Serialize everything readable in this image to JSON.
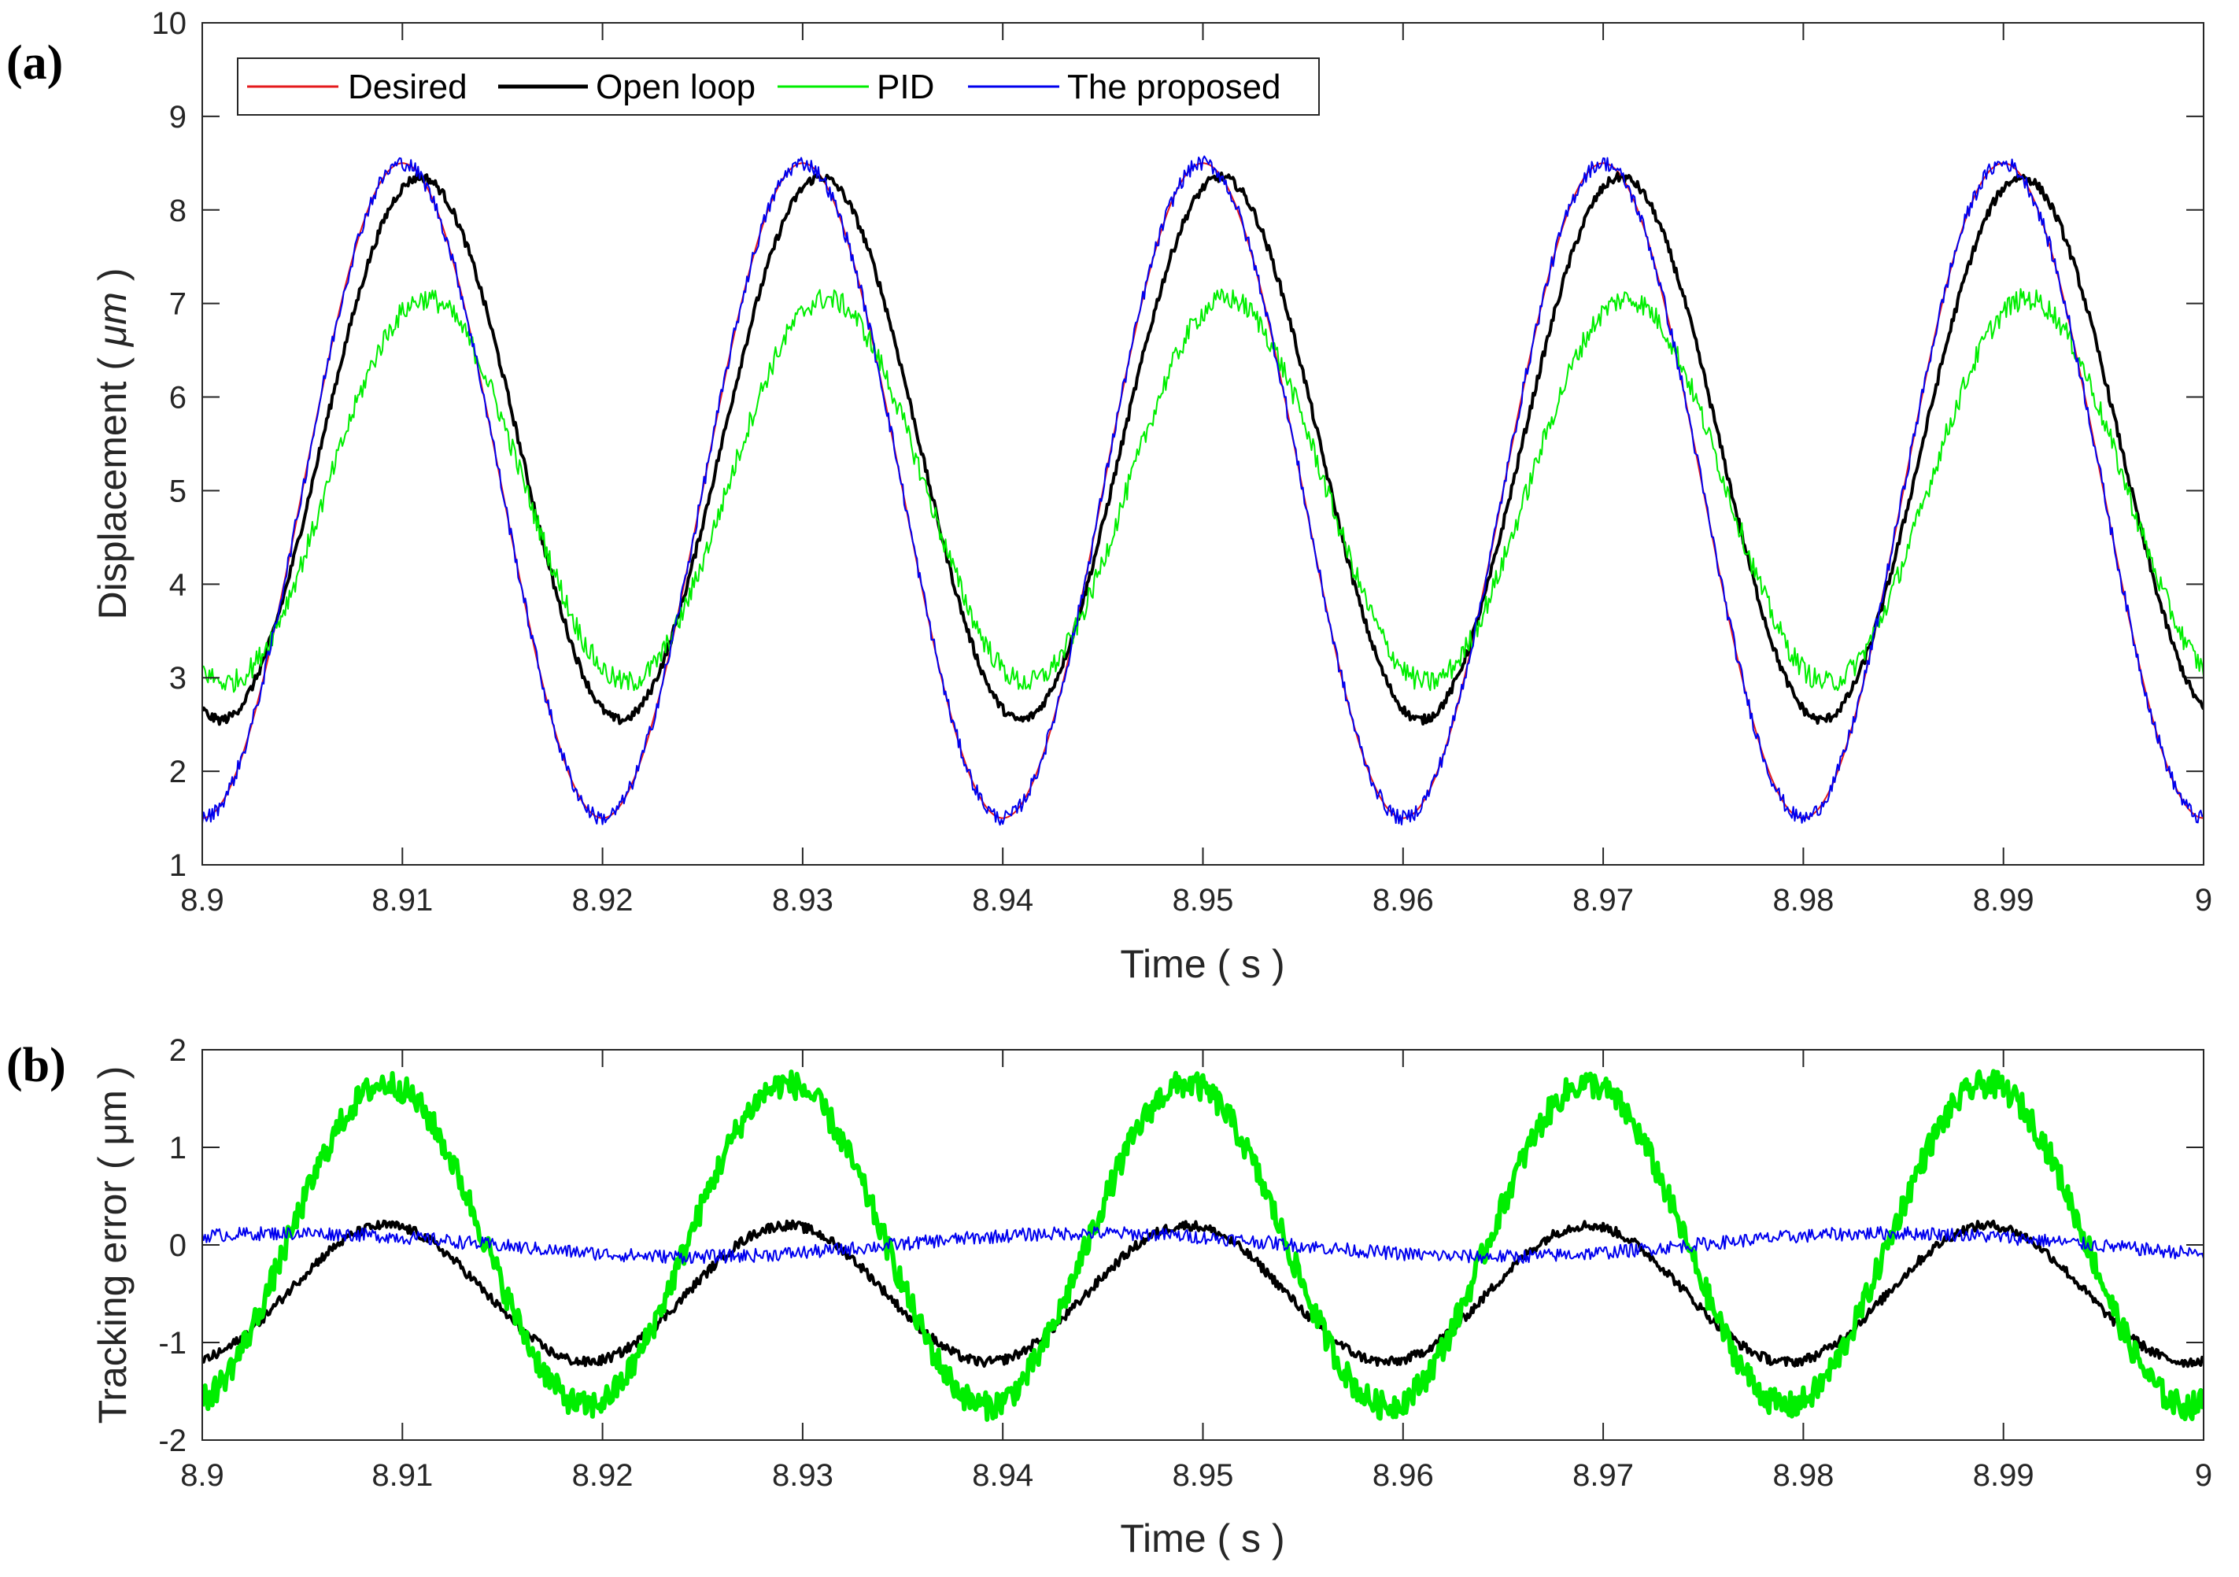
{
  "colors": {
    "desired": "#e41a1c",
    "open_loop": "#000000",
    "pid": "#00ee00",
    "proposed": "#0000ee",
    "axes": "#262626"
  },
  "chart_data": [
    {
      "panel_label": "(a)",
      "type": "line",
      "xlabel": "Time ( s )",
      "ylabel_main": "Displacement ( ",
      "ylabel_unit": "μm",
      "ylabel_close": " )",
      "xlim": [
        8.9,
        9.0
      ],
      "ylim": [
        1,
        10
      ],
      "xticks": [
        "8.9",
        "8.91",
        "8.92",
        "8.93",
        "8.94",
        "8.95",
        "8.96",
        "8.97",
        "8.98",
        "8.99",
        "9"
      ],
      "yticks": [
        "1",
        "2",
        "3",
        "4",
        "5",
        "6",
        "7",
        "8",
        "9",
        "10"
      ],
      "legend": {
        "placement": "top-left",
        "entries": [
          "Desired",
          "Open loop",
          "PID",
          "The proposed"
        ]
      },
      "series": [
        {
          "name": "Desired",
          "color_key": "desired",
          "mean": 5.0,
          "amplitude": 3.5,
          "phase_lag_s": 0.0,
          "period_s": 0.02,
          "noise": 0.0,
          "width": 2
        },
        {
          "name": "Open loop",
          "color_key": "open_loop",
          "mean": 5.45,
          "amplitude": 2.9,
          "phase_lag_s": 0.0009,
          "period_s": 0.02,
          "noise": 0.05,
          "width": 4
        },
        {
          "name": "PID",
          "color_key": "pid",
          "mean": 5.0,
          "amplitude": 2.05,
          "phase_lag_s": 0.0012,
          "period_s": 0.02,
          "noise": 0.12,
          "width": 2
        },
        {
          "name": "The proposed",
          "color_key": "proposed",
          "mean": 5.0,
          "amplitude": 3.5,
          "phase_lag_s": 0.0,
          "period_s": 0.02,
          "noise": 0.08,
          "width": 2
        }
      ]
    },
    {
      "panel_label": "(b)",
      "type": "line",
      "xlabel": "Time ( s )",
      "ylabel": "Tracking error ( μm )",
      "xlim": [
        8.9,
        9.0
      ],
      "ylim": [
        -2,
        2
      ],
      "xticks": [
        "8.9",
        "8.91",
        "8.92",
        "8.93",
        "8.94",
        "8.95",
        "8.96",
        "8.97",
        "8.98",
        "8.99",
        "9"
      ],
      "yticks": [
        "-2",
        "-1",
        "0",
        "1",
        "2"
      ],
      "series": [
        {
          "name": "Open loop",
          "color_key": "open_loop",
          "mean": -0.5,
          "amplitude": 0.7,
          "peak_time_s": 8.9092,
          "period_s": 0.02,
          "noise": 0.05,
          "width": 4
        },
        {
          "name": "PID",
          "color_key": "pid",
          "mean": 0.0,
          "amplitude": 1.65,
          "peak_time_s": 8.9092,
          "period_s": 0.02,
          "noise": 0.14,
          "width": 6
        },
        {
          "name": "The proposed",
          "color_key": "proposed",
          "mean": 0.0,
          "amplitude": 0.12,
          "peak_time_s": 8.9045,
          "period_s": 0.04,
          "noise": 0.07,
          "width": 2
        }
      ]
    }
  ]
}
